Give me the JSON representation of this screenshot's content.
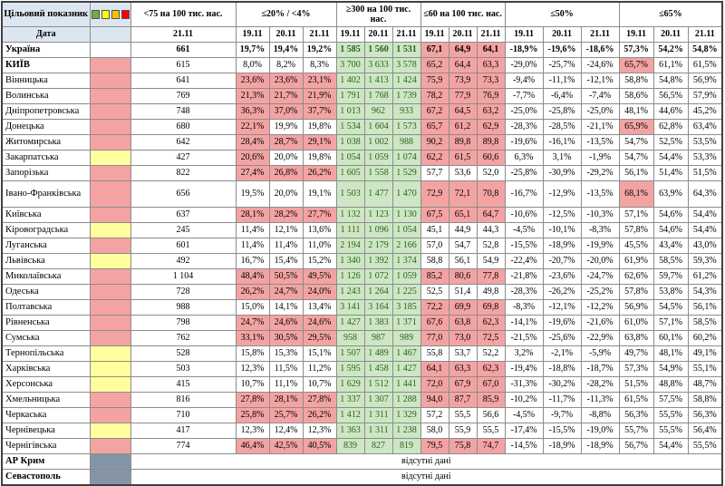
{
  "header": {
    "target_label": "Цільовий показник",
    "date_label": "Дата",
    "legend_colors": [
      "#70ad47",
      "#ffff00",
      "#ffc000",
      "#ff0000"
    ],
    "groups": [
      {
        "label": "<75 на 100 тис. нас.",
        "dates": [
          "21.11"
        ]
      },
      {
        "label": "≤20% / <4%",
        "dates": [
          "19.11",
          "20.11",
          "21.11"
        ]
      },
      {
        "label": "≥300 на 100 тис. нас.",
        "dates": [
          "19.11",
          "20.11",
          "21.11"
        ]
      },
      {
        "label": "≤60 на 100 тис. нас.",
        "dates": [
          "19.11",
          "20.11",
          "21.11"
        ]
      },
      {
        "label": "≤50%",
        "dates": [
          "19.11",
          "20.11",
          "21.11"
        ]
      },
      {
        "label": "≤65%",
        "dates": [
          "19.11",
          "20.11",
          "21.11"
        ]
      }
    ]
  },
  "colors": {
    "header_blue": "#dce6f1",
    "cell_red": "#f4a3a3",
    "cell_green": "#cde7c5",
    "cell_yellow": "#ffff9d",
    "zone_grey": "#8496a5",
    "green_text": "#2d5e1e"
  },
  "rows": [
    {
      "name": "Україна",
      "zone": "none",
      "bold_row": true,
      "values": [
        "661",
        "19,7%",
        "19,4%",
        "19,2%",
        "1 585",
        "1 560",
        "1 531",
        "67,1",
        "64,9",
        "64,1",
        "-18,9%",
        "-19,6%",
        "-18,6%",
        "57,3%",
        "54,2%",
        "54,8%"
      ],
      "colors": "wwwwgggrrrwwwwww"
    },
    {
      "name": "КИЇВ",
      "zone": "red",
      "bold_name": true,
      "values": [
        "615",
        "8,0%",
        "8,2%",
        "8,3%",
        "3 700",
        "3 633",
        "3 578",
        "65,2",
        "64,4",
        "63,3",
        "-29,0%",
        "-25,7%",
        "-24,6%",
        "65,7%",
        "61,1%",
        "61,5%"
      ],
      "colors": "wwwwgggrrrwwwrww"
    },
    {
      "name": "Вінницька",
      "zone": "red",
      "values": [
        "641",
        "23,6%",
        "23,6%",
        "23,1%",
        "1 402",
        "1 413",
        "1 424",
        "75,9",
        "73,9",
        "73,3",
        "-9,4%",
        "-11,1%",
        "-12,1%",
        "58,8%",
        "54,8%",
        "56,9%"
      ],
      "colors": "wrrrgggrrrwwwwww"
    },
    {
      "name": "Волинська",
      "zone": "red",
      "values": [
        "769",
        "21,3%",
        "21,7%",
        "21,9%",
        "1 791",
        "1 768",
        "1 739",
        "78,2",
        "77,9",
        "76,9",
        "-7,7%",
        "-6,4%",
        "-7,4%",
        "58,6%",
        "56,5%",
        "57,9%"
      ],
      "colors": "wrrrgggrrrwwwwww"
    },
    {
      "name": "Дніпропетровська",
      "zone": "red",
      "values": [
        "748",
        "36,3%",
        "37,0%",
        "37,7%",
        "1 013",
        "962",
        "933",
        "67,2",
        "64,5",
        "63,2",
        "-25,0%",
        "-25,8%",
        "-25,0%",
        "48,1%",
        "44,6%",
        "45,2%"
      ],
      "colors": "wrrrgggrrrwwwwww"
    },
    {
      "name": "Донецька",
      "zone": "red",
      "values": [
        "680",
        "22,1%",
        "19,9%",
        "19,8%",
        "1 534",
        "1 604",
        "1 573",
        "65,7",
        "61,2",
        "62,9",
        "-28,3%",
        "-28,5%",
        "-21,1%",
        "65,9%",
        "62,8%",
        "63,4%"
      ],
      "colors": "wrwwgggrrrwwwrww"
    },
    {
      "name": "Житомирська",
      "zone": "red",
      "values": [
        "642",
        "28,4%",
        "28,7%",
        "29,1%",
        "1 038",
        "1 002",
        "988",
        "90,2",
        "89,8",
        "89,8",
        "-19,6%",
        "-16,1%",
        "-13,5%",
        "54,7%",
        "52,5%",
        "53,5%"
      ],
      "colors": "wrrrgggrrrwwwwww"
    },
    {
      "name": "Закарпатська",
      "zone": "yellow",
      "values": [
        "427",
        "20,6%",
        "20,0%",
        "19,8%",
        "1 054",
        "1 059",
        "1 074",
        "62,2",
        "61,5",
        "60,6",
        "6,3%",
        "3,1%",
        "-1,9%",
        "54,7%",
        "54,4%",
        "53,3%"
      ],
      "colors": "wrwwgggrrrwwwwww"
    },
    {
      "name": "Запорізька",
      "zone": "red",
      "values": [
        "822",
        "27,4%",
        "26,8%",
        "26,2%",
        "1 605",
        "1 558",
        "1 529",
        "57,7",
        "53,6",
        "52,0",
        "-25,8%",
        "-30,9%",
        "-29,2%",
        "56,1%",
        "51,4%",
        "51,5%"
      ],
      "colors": "wrrrgggwwwwwwwww"
    },
    {
      "name": "Івано-Франківська",
      "zone": "red",
      "tall": true,
      "values": [
        "656",
        "19,5%",
        "20,0%",
        "19,1%",
        "1 503",
        "1 477",
        "1 470",
        "72,9",
        "72,1",
        "70,8",
        "-16,7%",
        "-12,9%",
        "-13,5%",
        "68,1%",
        "63,9%",
        "64,3%"
      ],
      "colors": "wwwwgggrrrwwwrww"
    },
    {
      "name": "Київська",
      "zone": "red",
      "values": [
        "637",
        "28,1%",
        "28,2%",
        "27,7%",
        "1 132",
        "1 123",
        "1 130",
        "67,5",
        "65,1",
        "64,7",
        "-10,6%",
        "-12,5%",
        "-10,3%",
        "57,1%",
        "54,6%",
        "54,4%"
      ],
      "colors": "wrrrgggrrrwwwwww"
    },
    {
      "name": "Кіровоградська",
      "zone": "yellow",
      "values": [
        "245",
        "11,4%",
        "12,1%",
        "13,6%",
        "1 111",
        "1 096",
        "1 054",
        "45,1",
        "44,9",
        "44,3",
        "-4,5%",
        "-10,1%",
        "-8,3%",
        "57,8%",
        "54,6%",
        "54,4%"
      ],
      "colors": "wwwwgggwwwwwwwww"
    },
    {
      "name": "Луганська",
      "zone": "red",
      "values": [
        "601",
        "11,4%",
        "11,4%",
        "11,0%",
        "2 194",
        "2 179",
        "2 166",
        "57,0",
        "54,7",
        "52,8",
        "-15,5%",
        "-18,9%",
        "-19,9%",
        "45,5%",
        "43,4%",
        "43,0%"
      ],
      "colors": "wwwwgggwwwwwwwww"
    },
    {
      "name": "Львівська",
      "zone": "yellow",
      "values": [
        "492",
        "16,7%",
        "15,4%",
        "15,2%",
        "1 340",
        "1 392",
        "1 374",
        "58,8",
        "56,1",
        "54,9",
        "-22,4%",
        "-20,7%",
        "-20,0%",
        "61,9%",
        "58,5%",
        "59,3%"
      ],
      "colors": "wwwwgggwwwwwwwww"
    },
    {
      "name": "Миколаївська",
      "zone": "red",
      "values": [
        "1 104",
        "48,4%",
        "50,5%",
        "49,5%",
        "1 126",
        "1 072",
        "1 059",
        "85,2",
        "80,6",
        "77,8",
        "-21,8%",
        "-23,6%",
        "-24,7%",
        "62,6%",
        "59,7%",
        "61,2%"
      ],
      "colors": "wrrrgggrrrwwwwww"
    },
    {
      "name": "Одеська",
      "zone": "red",
      "values": [
        "728",
        "26,2%",
        "24,7%",
        "24,0%",
        "1 243",
        "1 264",
        "1 225",
        "52,5",
        "51,4",
        "49,8",
        "-28,3%",
        "-26,2%",
        "-25,2%",
        "57,8%",
        "53,8%",
        "54,3%"
      ],
      "colors": "wrrrgggwwwwwwwww"
    },
    {
      "name": "Полтавська",
      "zone": "red",
      "values": [
        "988",
        "15,0%",
        "14,1%",
        "13,4%",
        "3 141",
        "3 164",
        "3 185",
        "72,2",
        "69,9",
        "69,8",
        "-8,3%",
        "-12,1%",
        "-12,2%",
        "56,9%",
        "54,5%",
        "56,1%"
      ],
      "colors": "wwwwgggrrrwwwwww"
    },
    {
      "name": "Рівненська",
      "zone": "red",
      "values": [
        "798",
        "24,7%",
        "24,6%",
        "24,6%",
        "1 427",
        "1 383",
        "1 371",
        "67,6",
        "63,8",
        "62,3",
        "-14,1%",
        "-19,6%",
        "-21,6%",
        "61,0%",
        "57,1%",
        "58,5%"
      ],
      "colors": "wrrrgggrrrwwwwww"
    },
    {
      "name": "Сумська",
      "zone": "red",
      "values": [
        "762",
        "33,1%",
        "30,5%",
        "29,5%",
        "958",
        "987",
        "989",
        "77,0",
        "73,0",
        "72,5",
        "-21,5%",
        "-25,6%",
        "-22,9%",
        "63,8%",
        "60,1%",
        "60,2%"
      ],
      "colors": "wrrrgggrrrwwwwww"
    },
    {
      "name": "Тернопільська",
      "zone": "yellow",
      "values": [
        "528",
        "15,8%",
        "15,3%",
        "15,1%",
        "1 507",
        "1 489",
        "1 467",
        "55,8",
        "53,7",
        "52,2",
        "3,2%",
        "-2,1%",
        "-5,9%",
        "49,7%",
        "48,1%",
        "49,1%"
      ],
      "colors": "wwwwgggwwwwwwwww"
    },
    {
      "name": "Харківська",
      "zone": "yellow",
      "values": [
        "503",
        "12,3%",
        "11,5%",
        "11,2%",
        "1 595",
        "1 458",
        "1 427",
        "64,1",
        "63,3",
        "62,3",
        "-19,4%",
        "-18,8%",
        "-18,7%",
        "57,3%",
        "54,9%",
        "55,1%"
      ],
      "colors": "wwwwgggrrrwwwwww"
    },
    {
      "name": "Херсонська",
      "zone": "yellow",
      "values": [
        "415",
        "10,7%",
        "11,1%",
        "10,7%",
        "1 629",
        "1 512",
        "1 441",
        "72,0",
        "67,9",
        "67,0",
        "-31,3%",
        "-30,2%",
        "-28,2%",
        "51,5%",
        "48,8%",
        "48,7%"
      ],
      "colors": "wwwwgggrrrwwwwww"
    },
    {
      "name": "Хмельницька",
      "zone": "red",
      "values": [
        "816",
        "27,8%",
        "28,1%",
        "27,8%",
        "1 337",
        "1 307",
        "1 288",
        "94,0",
        "87,7",
        "85,9",
        "-10,2%",
        "-11,7%",
        "-11,3%",
        "61,5%",
        "57,5%",
        "58,8%"
      ],
      "colors": "wrrrgggrrrwwwwww"
    },
    {
      "name": "Черкаська",
      "zone": "red",
      "values": [
        "710",
        "25,8%",
        "25,7%",
        "26,2%",
        "1 412",
        "1 311",
        "1 329",
        "57,2",
        "55,5",
        "56,6",
        "-4,5%",
        "-9,7%",
        "-8,8%",
        "56,3%",
        "55,5%",
        "56,3%"
      ],
      "colors": "wrrrgggwwwwwwwww"
    },
    {
      "name": "Чернівецька",
      "zone": "yellow",
      "values": [
        "417",
        "12,3%",
        "12,4%",
        "12,3%",
        "1 363",
        "1 311",
        "1 238",
        "58,0",
        "55,9",
        "55,5",
        "-17,4%",
        "-15,5%",
        "-19,0%",
        "55,7%",
        "55,5%",
        "56,4%"
      ],
      "colors": "wwwwgggwwwwwwwww"
    },
    {
      "name": "Чернігівська",
      "zone": "red",
      "values": [
        "774",
        "46,4%",
        "42,5%",
        "40,5%",
        "839",
        "827",
        "819",
        "79,5",
        "75,8",
        "74,7",
        "-14,5%",
        "-18,9%",
        "-18,9%",
        "56,7%",
        "54,4%",
        "55,5%"
      ],
      "colors": "wrrrgggrrrwwwwww"
    }
  ],
  "no_data_rows": [
    {
      "name": "АР Крим",
      "zone": "grey",
      "text": "відсутні дані"
    },
    {
      "name": "Севастополь",
      "zone": "grey",
      "text": "відсутні дані"
    }
  ]
}
